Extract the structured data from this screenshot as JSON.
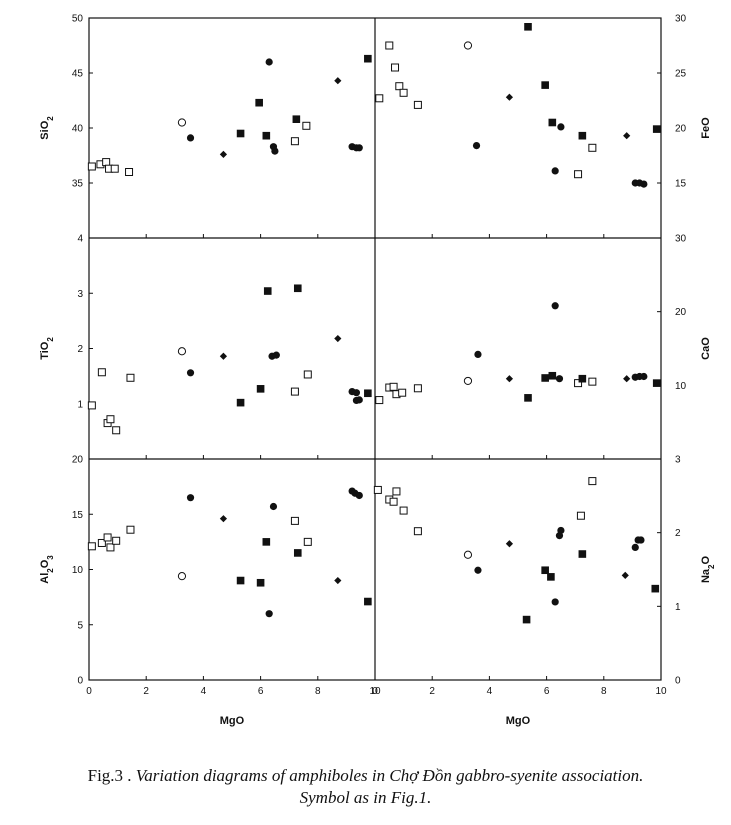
{
  "chart_data": [
    {
      "id": "sio2",
      "type": "scatter",
      "ylabel": "SiO2",
      "ylabel_main": "SiO",
      "ylabel_sub": "2",
      "xlim": [
        0,
        10
      ],
      "ylim": [
        30,
        50
      ],
      "yticks": [
        "35",
        "40",
        "45",
        "50"
      ],
      "points": [
        {
          "x": 0.1,
          "y": 36.5,
          "m": "open-square"
        },
        {
          "x": 0.4,
          "y": 36.7,
          "m": "open-square"
        },
        {
          "x": 0.6,
          "y": 36.9,
          "m": "open-square"
        },
        {
          "x": 0.7,
          "y": 36.3,
          "m": "open-square"
        },
        {
          "x": 0.9,
          "y": 36.3,
          "m": "open-square"
        },
        {
          "x": 1.4,
          "y": 36.0,
          "m": "open-square"
        },
        {
          "x": 7.2,
          "y": 38.8,
          "m": "open-square"
        },
        {
          "x": 7.6,
          "y": 40.2,
          "m": "open-square"
        },
        {
          "x": 3.25,
          "y": 40.5,
          "m": "open-circle"
        },
        {
          "x": 3.55,
          "y": 39.1,
          "m": "filled-circle"
        },
        {
          "x": 6.3,
          "y": 46.0,
          "m": "filled-circle"
        },
        {
          "x": 6.45,
          "y": 38.3,
          "m": "filled-circle"
        },
        {
          "x": 6.5,
          "y": 37.9,
          "m": "filled-circle"
        },
        {
          "x": 9.2,
          "y": 38.3,
          "m": "filled-circle"
        },
        {
          "x": 9.35,
          "y": 38.2,
          "m": "filled-circle"
        },
        {
          "x": 9.45,
          "y": 38.2,
          "m": "filled-circle"
        },
        {
          "x": 4.7,
          "y": 37.6,
          "m": "filled-diamond"
        },
        {
          "x": 8.7,
          "y": 44.3,
          "m": "filled-diamond"
        },
        {
          "x": 5.3,
          "y": 39.5,
          "m": "filled-square"
        },
        {
          "x": 5.95,
          "y": 42.3,
          "m": "filled-square"
        },
        {
          "x": 6.2,
          "y": 39.3,
          "m": "filled-square"
        },
        {
          "x": 7.25,
          "y": 40.8,
          "m": "filled-square"
        },
        {
          "x": 9.75,
          "y": 46.3,
          "m": "filled-square"
        }
      ]
    },
    {
      "id": "feo",
      "type": "scatter",
      "ylabel": "FeO",
      "ylabel_main": "FeO",
      "ylabel_sub": "",
      "xlim": [
        0,
        10
      ],
      "ylim": [
        10,
        30
      ],
      "yticks": [
        "15",
        "20",
        "25",
        "30"
      ],
      "points": [
        {
          "x": 0.15,
          "y": 22.7,
          "m": "open-square"
        },
        {
          "x": 0.5,
          "y": 27.5,
          "m": "open-square"
        },
        {
          "x": 0.7,
          "y": 25.5,
          "m": "open-square"
        },
        {
          "x": 0.85,
          "y": 23.8,
          "m": "open-square"
        },
        {
          "x": 1.0,
          "y": 23.2,
          "m": "open-square"
        },
        {
          "x": 1.5,
          "y": 22.1,
          "m": "open-square"
        },
        {
          "x": 7.1,
          "y": 15.8,
          "m": "open-square"
        },
        {
          "x": 7.6,
          "y": 18.2,
          "m": "open-square"
        },
        {
          "x": 3.25,
          "y": 27.5,
          "m": "open-circle"
        },
        {
          "x": 3.55,
          "y": 18.4,
          "m": "filled-circle"
        },
        {
          "x": 6.3,
          "y": 16.1,
          "m": "filled-circle"
        },
        {
          "x": 6.5,
          "y": 20.1,
          "m": "filled-circle"
        },
        {
          "x": 9.1,
          "y": 15.0,
          "m": "filled-circle"
        },
        {
          "x": 9.25,
          "y": 15.0,
          "m": "filled-circle"
        },
        {
          "x": 9.4,
          "y": 14.9,
          "m": "filled-circle"
        },
        {
          "x": 4.7,
          "y": 22.8,
          "m": "filled-diamond"
        },
        {
          "x": 8.8,
          "y": 19.3,
          "m": "filled-diamond"
        },
        {
          "x": 5.35,
          "y": 29.2,
          "m": "filled-square"
        },
        {
          "x": 5.95,
          "y": 23.9,
          "m": "filled-square"
        },
        {
          "x": 6.2,
          "y": 20.5,
          "m": "filled-square"
        },
        {
          "x": 7.25,
          "y": 19.3,
          "m": "filled-square"
        },
        {
          "x": 9.85,
          "y": 19.9,
          "m": "filled-square"
        }
      ]
    },
    {
      "id": "tio2",
      "type": "scatter",
      "ylabel": "TiO2",
      "ylabel_main": "TiO",
      "ylabel_sub": "2",
      "xlim": [
        0,
        10
      ],
      "ylim": [
        0,
        4
      ],
      "yticks": [
        "1",
        "2",
        "3",
        "4"
      ],
      "points": [
        {
          "x": 0.1,
          "y": 0.97,
          "m": "open-square"
        },
        {
          "x": 0.45,
          "y": 1.57,
          "m": "open-square"
        },
        {
          "x": 0.65,
          "y": 0.65,
          "m": "open-square"
        },
        {
          "x": 0.75,
          "y": 0.72,
          "m": "open-square"
        },
        {
          "x": 0.95,
          "y": 0.52,
          "m": "open-square"
        },
        {
          "x": 1.45,
          "y": 1.47,
          "m": "open-square"
        },
        {
          "x": 7.2,
          "y": 1.22,
          "m": "open-square"
        },
        {
          "x": 7.65,
          "y": 1.53,
          "m": "open-square"
        },
        {
          "x": 3.25,
          "y": 1.95,
          "m": "open-circle"
        },
        {
          "x": 3.55,
          "y": 1.56,
          "m": "filled-circle"
        },
        {
          "x": 6.4,
          "y": 1.86,
          "m": "filled-circle"
        },
        {
          "x": 6.55,
          "y": 1.88,
          "m": "filled-circle"
        },
        {
          "x": 9.2,
          "y": 1.22,
          "m": "filled-circle"
        },
        {
          "x": 9.35,
          "y": 1.2,
          "m": "filled-circle"
        },
        {
          "x": 9.35,
          "y": 1.06,
          "m": "filled-circle"
        },
        {
          "x": 9.45,
          "y": 1.07,
          "m": "filled-circle"
        },
        {
          "x": 4.7,
          "y": 1.86,
          "m": "filled-diamond"
        },
        {
          "x": 8.7,
          "y": 2.18,
          "m": "filled-diamond"
        },
        {
          "x": 5.3,
          "y": 1.02,
          "m": "filled-square"
        },
        {
          "x": 6.0,
          "y": 1.27,
          "m": "filled-square"
        },
        {
          "x": 6.25,
          "y": 3.04,
          "m": "filled-square"
        },
        {
          "x": 7.3,
          "y": 3.09,
          "m": "filled-square"
        },
        {
          "x": 9.75,
          "y": 1.19,
          "m": "filled-square"
        }
      ]
    },
    {
      "id": "cao",
      "type": "scatter",
      "ylabel": "CaO",
      "ylabel_main": "CaO",
      "ylabel_sub": "",
      "xlim": [
        0,
        10
      ],
      "ylim": [
        0,
        30
      ],
      "yticks": [
        "10",
        "20",
        "30"
      ],
      "points": [
        {
          "x": 0.15,
          "y": 8.0,
          "m": "open-square"
        },
        {
          "x": 0.5,
          "y": 9.7,
          "m": "open-square"
        },
        {
          "x": 0.65,
          "y": 9.8,
          "m": "open-square"
        },
        {
          "x": 0.75,
          "y": 8.8,
          "m": "open-square"
        },
        {
          "x": 0.95,
          "y": 9.0,
          "m": "open-square"
        },
        {
          "x": 1.5,
          "y": 9.6,
          "m": "open-square"
        },
        {
          "x": 7.1,
          "y": 10.3,
          "m": "open-square"
        },
        {
          "x": 7.6,
          "y": 10.5,
          "m": "open-square"
        },
        {
          "x": 3.25,
          "y": 10.6,
          "m": "open-circle"
        },
        {
          "x": 3.6,
          "y": 14.2,
          "m": "filled-circle"
        },
        {
          "x": 6.3,
          "y": 20.8,
          "m": "filled-circle"
        },
        {
          "x": 6.45,
          "y": 10.9,
          "m": "filled-circle"
        },
        {
          "x": 9.1,
          "y": 11.1,
          "m": "filled-circle"
        },
        {
          "x": 9.25,
          "y": 11.2,
          "m": "filled-circle"
        },
        {
          "x": 9.4,
          "y": 11.2,
          "m": "filled-circle"
        },
        {
          "x": 4.7,
          "y": 10.9,
          "m": "filled-diamond"
        },
        {
          "x": 8.8,
          "y": 10.9,
          "m": "filled-diamond"
        },
        {
          "x": 5.35,
          "y": 8.3,
          "m": "filled-square"
        },
        {
          "x": 5.95,
          "y": 11.0,
          "m": "filled-square"
        },
        {
          "x": 6.2,
          "y": 11.3,
          "m": "filled-square"
        },
        {
          "x": 7.25,
          "y": 10.9,
          "m": "filled-square"
        },
        {
          "x": 9.85,
          "y": 10.3,
          "m": "filled-square"
        }
      ]
    },
    {
      "id": "al2o3",
      "type": "scatter",
      "ylabel": "Al2O3",
      "ylabel_main": "Al",
      "ylabel_sub": "2",
      "ylabel_mid": "O",
      "ylabel_sub2": "3",
      "xlim": [
        0,
        10
      ],
      "ylim": [
        0,
        20
      ],
      "yticks": [
        "0",
        "5",
        "10",
        "15",
        "20"
      ],
      "xticks": [
        "0",
        "2",
        "4",
        "6",
        "8",
        "10"
      ],
      "xlabel": "MgO",
      "points": [
        {
          "x": 0.1,
          "y": 12.1,
          "m": "open-square"
        },
        {
          "x": 0.45,
          "y": 12.4,
          "m": "open-square"
        },
        {
          "x": 0.65,
          "y": 12.9,
          "m": "open-square"
        },
        {
          "x": 0.75,
          "y": 12.0,
          "m": "open-square"
        },
        {
          "x": 0.95,
          "y": 12.6,
          "m": "open-square"
        },
        {
          "x": 1.45,
          "y": 13.6,
          "m": "open-square"
        },
        {
          "x": 7.2,
          "y": 14.4,
          "m": "open-square"
        },
        {
          "x": 7.65,
          "y": 12.5,
          "m": "open-square"
        },
        {
          "x": 3.25,
          "y": 9.4,
          "m": "open-circle"
        },
        {
          "x": 3.55,
          "y": 16.5,
          "m": "filled-circle"
        },
        {
          "x": 6.3,
          "y": 6.0,
          "m": "filled-circle"
        },
        {
          "x": 6.45,
          "y": 15.7,
          "m": "filled-circle"
        },
        {
          "x": 9.2,
          "y": 17.1,
          "m": "filled-circle"
        },
        {
          "x": 9.3,
          "y": 16.9,
          "m": "filled-circle"
        },
        {
          "x": 9.45,
          "y": 16.7,
          "m": "filled-circle"
        },
        {
          "x": 4.7,
          "y": 14.6,
          "m": "filled-diamond"
        },
        {
          "x": 8.7,
          "y": 9.0,
          "m": "filled-diamond"
        },
        {
          "x": 5.3,
          "y": 9.0,
          "m": "filled-square"
        },
        {
          "x": 6.0,
          "y": 8.8,
          "m": "filled-square"
        },
        {
          "x": 6.2,
          "y": 12.5,
          "m": "filled-square"
        },
        {
          "x": 7.3,
          "y": 11.5,
          "m": "filled-square"
        },
        {
          "x": 9.75,
          "y": 7.1,
          "m": "filled-square"
        }
      ]
    },
    {
      "id": "na2o",
      "type": "scatter",
      "ylabel": "Na2O",
      "ylabel_main": "Na",
      "ylabel_sub": "2",
      "ylabel_mid": "O",
      "ylabel_sub2": "",
      "xlim": [
        0,
        10
      ],
      "ylim": [
        0,
        3
      ],
      "yticks": [
        "0",
        "1",
        "2",
        "3"
      ],
      "xticks": [
        "0",
        "2",
        "4",
        "6",
        "8",
        "10"
      ],
      "xlabel": "MgO",
      "points": [
        {
          "x": 0.1,
          "y": 2.58,
          "m": "open-square"
        },
        {
          "x": 0.5,
          "y": 2.45,
          "m": "open-square"
        },
        {
          "x": 0.65,
          "y": 2.42,
          "m": "open-square"
        },
        {
          "x": 0.75,
          "y": 2.56,
          "m": "open-square"
        },
        {
          "x": 1.0,
          "y": 2.3,
          "m": "open-square"
        },
        {
          "x": 1.5,
          "y": 2.02,
          "m": "open-square"
        },
        {
          "x": 7.2,
          "y": 2.23,
          "m": "open-square"
        },
        {
          "x": 7.6,
          "y": 2.7,
          "m": "open-square"
        },
        {
          "x": 3.25,
          "y": 1.7,
          "m": "open-circle"
        },
        {
          "x": 3.6,
          "y": 1.49,
          "m": "filled-circle"
        },
        {
          "x": 6.3,
          "y": 1.06,
          "m": "filled-circle"
        },
        {
          "x": 6.45,
          "y": 1.96,
          "m": "filled-circle"
        },
        {
          "x": 6.5,
          "y": 2.03,
          "m": "filled-circle"
        },
        {
          "x": 9.1,
          "y": 1.8,
          "m": "filled-circle"
        },
        {
          "x": 9.2,
          "y": 1.9,
          "m": "filled-circle"
        },
        {
          "x": 9.3,
          "y": 1.9,
          "m": "filled-circle"
        },
        {
          "x": 4.7,
          "y": 1.85,
          "m": "filled-diamond"
        },
        {
          "x": 8.75,
          "y": 1.42,
          "m": "filled-diamond"
        },
        {
          "x": 5.3,
          "y": 0.82,
          "m": "filled-square"
        },
        {
          "x": 5.95,
          "y": 1.49,
          "m": "filled-square"
        },
        {
          "x": 6.15,
          "y": 1.4,
          "m": "filled-square"
        },
        {
          "x": 7.25,
          "y": 1.71,
          "m": "filled-square"
        },
        {
          "x": 9.8,
          "y": 1.24,
          "m": "filled-square"
        }
      ]
    }
  ],
  "caption": {
    "line1_prefix": "Fig.3 . ",
    "line1_italic": "Variation diagrams of amphiboles in Chợ Đồn gabbro-syenite association.",
    "line2": "Symbol as in Fig.1."
  },
  "colors": {
    "ink": "#111111",
    "paper": "#ffffff"
  }
}
